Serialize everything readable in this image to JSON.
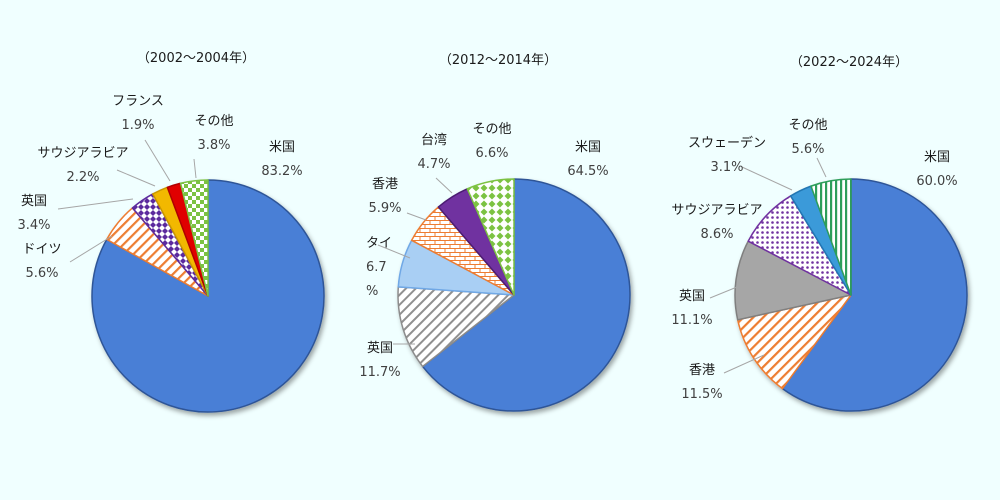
{
  "chart_data": [
    {
      "type": "pie",
      "title": "（2002～2004年）",
      "slices": [
        {
          "label": "米国",
          "value": 83.2,
          "value_label": "83.2%",
          "color": "#4A7FD6",
          "pattern": "solid"
        },
        {
          "label": "ドイツ",
          "value": 5.6,
          "value_label": "5.6%",
          "color": "#ED7D31",
          "pattern": "diagonal-lines"
        },
        {
          "label": "英国",
          "value": 3.4,
          "value_label": "3.4%",
          "color": "#5B2C9E",
          "pattern": "diamonds"
        },
        {
          "label": "サウジアラビア",
          "value": 2.2,
          "value_label": "2.2%",
          "color": "#F2B800",
          "pattern": "solid"
        },
        {
          "label": "フランス",
          "value": 1.9,
          "value_label": "1.9%",
          "color": "#E00000",
          "pattern": "solid"
        },
        {
          "label": "その他",
          "value": 3.8,
          "value_label": "3.8%",
          "color": "#7CC243",
          "pattern": "checker"
        }
      ]
    },
    {
      "type": "pie",
      "title": "（2012～2014年）",
      "slices": [
        {
          "label": "米国",
          "value": 64.5,
          "value_label": "64.5%",
          "color": "#4A7FD6",
          "pattern": "solid"
        },
        {
          "label": "英国",
          "value": 11.7,
          "value_label": "11.7%",
          "color": "#A6A6A6",
          "pattern": "diagonal-lines"
        },
        {
          "label": "タイ",
          "value": 6.7,
          "value_label": "6.7 %",
          "color": "#9DC3F0",
          "pattern": "solid"
        },
        {
          "label": "香港",
          "value": 5.9,
          "value_label": "5.9%",
          "color": "#ED7D31",
          "pattern": "bricks"
        },
        {
          "label": "台湾",
          "value": 4.7,
          "value_label": "4.7%",
          "color": "#7030A0",
          "pattern": "solid"
        },
        {
          "label": "その他",
          "value": 6.6,
          "value_label": "6.6%",
          "color": "#7CC243",
          "pattern": "diamonds"
        }
      ]
    },
    {
      "type": "pie",
      "title": "（2022～2024年）",
      "slices": [
        {
          "label": "米国",
          "value": 60.0,
          "value_label": "60.0%",
          "color": "#4A7FD6",
          "pattern": "solid"
        },
        {
          "label": "香港",
          "value": 11.5,
          "value_label": "11.5%",
          "color": "#ED7D31",
          "pattern": "diagonal-lines"
        },
        {
          "label": "英国",
          "value": 11.1,
          "value_label": "11.1%",
          "color": "#A6A6A6",
          "pattern": "solid"
        },
        {
          "label": "サウジアラビア",
          "value": 8.6,
          "value_label": "8.6%",
          "color": "#7030A0",
          "pattern": "dots"
        },
        {
          "label": "スウェーデン",
          "value": 3.1,
          "value_label": "3.1%",
          "color": "#3A9AD9",
          "pattern": "solid"
        },
        {
          "label": "その他",
          "value": 5.6,
          "value_label": "5.6%",
          "color": "#2E9E5A",
          "pattern": "vertical-lines"
        }
      ]
    }
  ]
}
